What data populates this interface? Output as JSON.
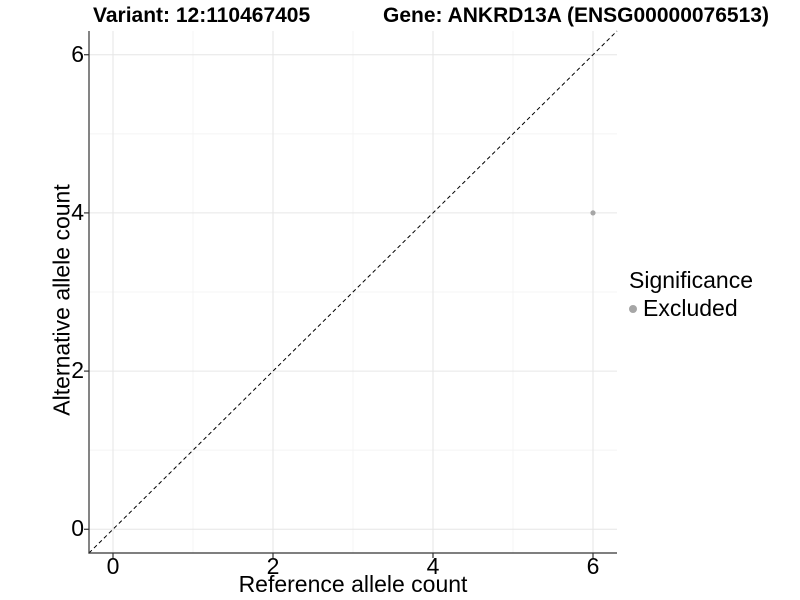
{
  "figure": {
    "title_left": "Variant: 12:110467405",
    "title_right": "Gene: ANKRD13A (ENSG00000076513)"
  },
  "chart_data": {
    "type": "scatter",
    "title": "Variant: 12:110467405  Gene: ANKRD13A (ENSG00000076513)",
    "xlabel": "Reference allele count",
    "ylabel": "Alternative allele count",
    "xlim": [
      -0.3,
      6.3
    ],
    "ylim": [
      -0.3,
      6.3
    ],
    "x_major_ticks": [
      0,
      2,
      4,
      6
    ],
    "y_major_ticks": [
      0,
      2,
      4,
      6
    ],
    "x_minor_ticks": [
      1,
      3,
      5
    ],
    "y_minor_ticks": [
      1,
      3,
      5
    ],
    "grid": "major-and-minor",
    "series": [
      {
        "name": "Excluded",
        "color": "#a6a6a6",
        "points": [
          {
            "x": 6,
            "y": 4
          }
        ]
      }
    ],
    "identity_line": {
      "style": "dashed",
      "color": "#000000",
      "from": [
        -0.3,
        -0.3
      ],
      "to": [
        6.3,
        6.3
      ]
    },
    "legend": {
      "title": "Significance",
      "position": "right",
      "items": [
        {
          "label": "Excluded",
          "color": "#a6a6a6"
        }
      ]
    },
    "colors": {
      "grid_major": "#e6e6e6",
      "grid_minor": "#f4f4f4",
      "axis_line": "#333333",
      "tick_mark": "#333333",
      "text": "#000000",
      "point": "#a6a6a6"
    }
  }
}
